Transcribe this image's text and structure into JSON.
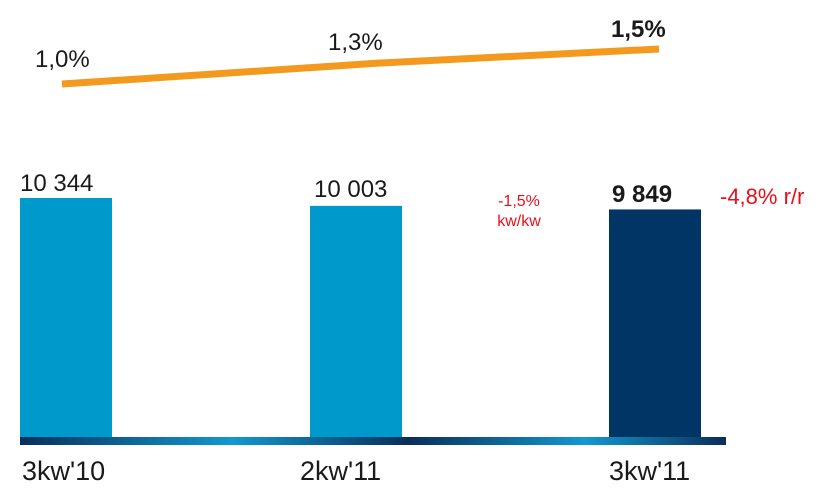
{
  "chart_data": {
    "type": "bar",
    "categories": [
      "3kw'10",
      "2kw'11",
      "3kw'11"
    ],
    "values": [
      10344,
      10003,
      9849
    ],
    "value_labels": [
      "10 344",
      "10 003",
      "9 849"
    ],
    "ylim": [
      0,
      10344
    ],
    "line_series": {
      "values": [
        1.0,
        1.3,
        1.5
      ],
      "labels": [
        "1,0%",
        "1,3%",
        "1,5%"
      ]
    },
    "annotations": {
      "qq_change": "-1,5%",
      "qq_unit": "kw/kw",
      "yy_change": "-4,8% r/r"
    }
  },
  "colors": {
    "bar": "#0099cc",
    "bar_highlight": "#003565",
    "line": "#f39a1e",
    "annotation": "#e8101a",
    "baseline_dark": "#0b2e59",
    "baseline_light": "#1298cf"
  }
}
